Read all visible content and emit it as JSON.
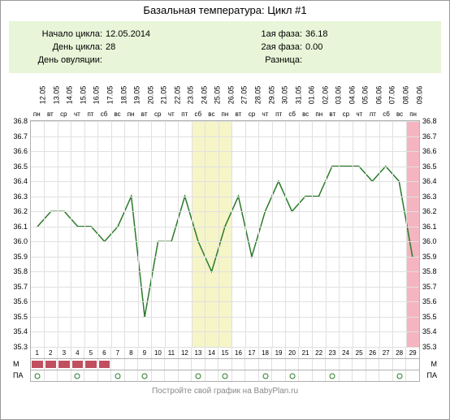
{
  "title": "Базальная температура: Цикл #1",
  "info": {
    "start_label": "Начало цикла:",
    "start_value": "12.05.2014",
    "day_label": "День цикла:",
    "day_value": "28",
    "ov_label": "День овуляции:",
    "ov_value": "",
    "phase1_label": "1ая фаза:",
    "phase1_value": "36.18",
    "phase2_label": "2ая фаза:",
    "phase2_value": "0.00",
    "diff_label": "Разница:",
    "diff_value": ""
  },
  "chart": {
    "type": "line",
    "ylim": [
      35.3,
      36.8
    ],
    "ytick_step": 0.1,
    "yticks": [
      36.8,
      36.7,
      36.6,
      36.5,
      36.4,
      36.3,
      36.2,
      36.1,
      36.0,
      35.9,
      35.8,
      35.7,
      35.6,
      35.5,
      35.4,
      35.3
    ],
    "days": [
      {
        "n": 1,
        "date": "12.05",
        "dow": "пн",
        "t": 36.1,
        "m": true,
        "pa": true
      },
      {
        "n": 2,
        "date": "13.05",
        "dow": "вт",
        "t": 36.2,
        "m": true,
        "pa": false
      },
      {
        "n": 3,
        "date": "14.05",
        "dow": "ср",
        "t": 36.2,
        "m": true,
        "pa": false
      },
      {
        "n": 4,
        "date": "15.05",
        "dow": "чт",
        "t": 36.1,
        "m": true,
        "pa": true
      },
      {
        "n": 5,
        "date": "16.05",
        "dow": "пт",
        "t": 36.1,
        "m": true,
        "pa": false
      },
      {
        "n": 6,
        "date": "17.05",
        "dow": "сб",
        "t": 36.0,
        "m": true,
        "pa": false
      },
      {
        "n": 7,
        "date": "18.05",
        "dow": "вс",
        "t": 36.1,
        "m": false,
        "pa": true
      },
      {
        "n": 8,
        "date": "19.05",
        "dow": "пн",
        "t": 36.3,
        "m": false,
        "pa": false
      },
      {
        "n": 9,
        "date": "20.05",
        "dow": "вт",
        "t": 35.5,
        "m": false,
        "pa": true
      },
      {
        "n": 10,
        "date": "21.05",
        "dow": "ср",
        "t": 36.0,
        "m": false,
        "pa": false
      },
      {
        "n": 11,
        "date": "22.05",
        "dow": "чт",
        "t": 36.0,
        "m": false,
        "pa": false
      },
      {
        "n": 12,
        "date": "23.05",
        "dow": "пт",
        "t": 36.3,
        "m": false,
        "pa": false
      },
      {
        "n": 13,
        "date": "24.05",
        "dow": "сб",
        "t": 36.0,
        "m": false,
        "pa": true
      },
      {
        "n": 14,
        "date": "25.05",
        "dow": "вс",
        "t": 35.8,
        "m": false,
        "pa": false
      },
      {
        "n": 15,
        "date": "26.05",
        "dow": "пн",
        "t": 36.1,
        "m": false,
        "pa": true
      },
      {
        "n": 16,
        "date": "27.05",
        "dow": "вт",
        "t": 36.3,
        "m": false,
        "pa": false
      },
      {
        "n": 17,
        "date": "28.05",
        "dow": "ср",
        "t": 35.9,
        "m": false,
        "pa": false
      },
      {
        "n": 18,
        "date": "29.05",
        "dow": "чт",
        "t": 36.2,
        "m": false,
        "pa": true
      },
      {
        "n": 19,
        "date": "30.05",
        "dow": "пт",
        "t": 36.4,
        "m": false,
        "pa": false
      },
      {
        "n": 20,
        "date": "31.05",
        "dow": "сб",
        "t": 36.2,
        "m": false,
        "pa": true
      },
      {
        "n": 21,
        "date": "01.06",
        "dow": "вс",
        "t": 36.3,
        "m": false,
        "pa": false
      },
      {
        "n": 22,
        "date": "02.06",
        "dow": "пн",
        "t": 36.3,
        "m": false,
        "pa": false
      },
      {
        "n": 23,
        "date": "03.06",
        "dow": "вт",
        "t": 36.5,
        "m": false,
        "pa": true
      },
      {
        "n": 24,
        "date": "04.06",
        "dow": "ср",
        "t": 36.5,
        "m": false,
        "pa": false
      },
      {
        "n": 25,
        "date": "05.06",
        "dow": "чт",
        "t": 36.5,
        "m": false,
        "pa": false
      },
      {
        "n": 26,
        "date": "06.06",
        "dow": "пт",
        "t": 36.4,
        "m": false,
        "pa": false
      },
      {
        "n": 27,
        "date": "07.06",
        "dow": "сб",
        "t": 36.5,
        "m": false,
        "pa": false
      },
      {
        "n": 28,
        "date": "08.06",
        "dow": "вс",
        "t": 36.4,
        "m": false,
        "pa": true
      },
      {
        "n": 29,
        "date": "09.06",
        "dow": "пн",
        "t": 35.9,
        "m": false,
        "pa": false
      }
    ],
    "ov_band": {
      "start": 13,
      "end": 15
    },
    "last_band": 29,
    "line_color": "#2a7a2a",
    "marker_color": "#2a7a2a",
    "marker_size": 4,
    "line_width": 1.5,
    "grid_color": "#e0e0e0",
    "ov_band_color": "#f5f5c8",
    "last_band_color": "#f5b5c0",
    "m_fill_color": "#c05060",
    "background_color": "#ffffff"
  },
  "row_labels": {
    "m": "М",
    "pa": "ПА"
  },
  "footer": "Постройте свой график на BabyPlan.ru"
}
